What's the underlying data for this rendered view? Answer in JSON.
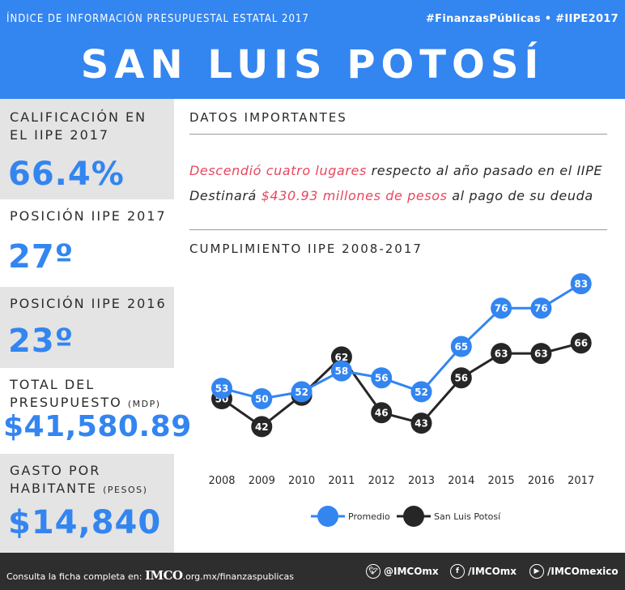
{
  "header": {
    "kicker": "ÍNDICE DE INFORMACIÓN PRESUPUESTAL ESTATAL 2017",
    "hashtags": "#FinanzasPúblicas  •  #IIPE2017",
    "title": "SAN LUIS POTOSÍ"
  },
  "stats": {
    "calificacion_label_1": "CALIFICACIÓN EN",
    "calificacion_label_2": "EL IIPE 2017",
    "calificacion_value": "66.4%",
    "pos2017_label": "POSICIÓN IIPE 2017",
    "pos2017_value": "27º",
    "pos2016_label": "POSICIÓN IIPE 2016",
    "pos2016_value": "23º",
    "presupuesto_label_1": "TOTAL DEL",
    "presupuesto_label_2": "PRESUPUESTO",
    "presupuesto_unit": "(MDP)",
    "presupuesto_value": "$41,580.89",
    "gasto_label_1": "GASTO POR",
    "gasto_label_2": "HABITANTE",
    "gasto_unit": "(PESOS)",
    "gasto_value": "$14,840"
  },
  "datos": {
    "title": "DATOS IMPORTANTES",
    "fact1_hl": "Descendió cuatro lugares",
    "fact1_rest": " respecto al año pasado en el IIPE",
    "fact2_pre": "Destinará ",
    "fact2_hl": "$430.93 millones de pesos",
    "fact2_rest": " al pago de su deuda"
  },
  "chart_title": "CUMPLIMIENTO IIPE 2008-2017",
  "chart_data": {
    "type": "line",
    "categories": [
      "2008",
      "2009",
      "2010",
      "2011",
      "2012",
      "2013",
      "2014",
      "2015",
      "2016",
      "2017"
    ],
    "series": [
      {
        "name": "Promedio",
        "color": "#3385f0",
        "values": [
          53,
          50,
          52,
          58,
          56,
          52,
          65,
          76,
          76,
          83
        ]
      },
      {
        "name": "San Luis Potosí",
        "color": "#262626",
        "values": [
          50,
          42,
          51,
          62,
          46,
          43,
          56,
          63,
          63,
          66
        ]
      }
    ],
    "ylim": [
      30,
      90
    ],
    "grid": false,
    "legend_position": "bottom"
  },
  "footer": {
    "text_pre": "Consulta la ficha completa en: ",
    "logo": "IMCO",
    "text_post": ".org.mx/finanzaspublicas",
    "twitter": "@IMCOmx",
    "facebook": "/IMCOmx",
    "youtube": "/IMCOmexico"
  }
}
